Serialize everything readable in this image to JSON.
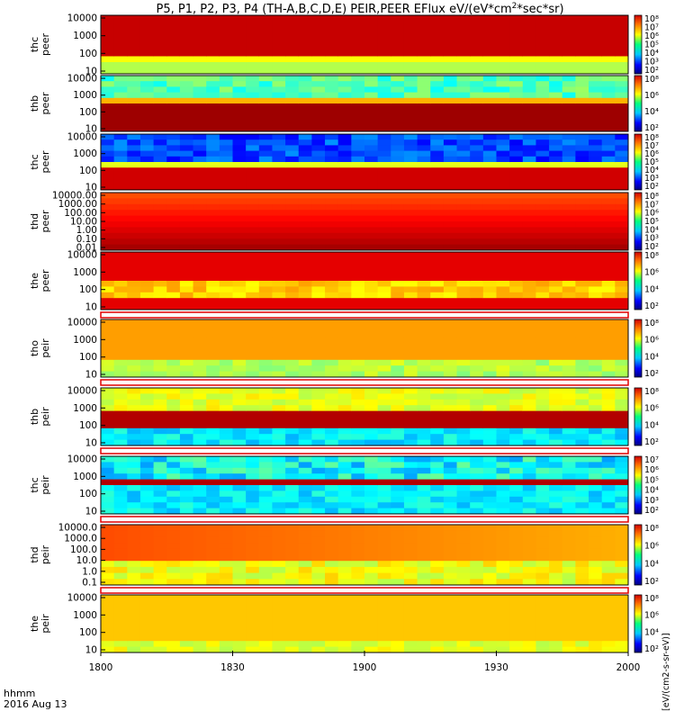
{
  "chart_data": {
    "type": "heatmap",
    "title": "P5, P1, P2, P3, P4 (TH-A,B,C,D,E) PEIR,PEER EFlux eV/(eV*cm",
    "title_sup": "2",
    "title_tail": "*sec*sr)",
    "colorbar_unit": "[eV/(cm2-s-sr-eV)]",
    "x_ticks": [
      "1800",
      "1830",
      "1900",
      "1930",
      "2000"
    ],
    "x_range_min": [
      0,
      120
    ],
    "x_axis_label": "hhmm",
    "date_label": "2016 Aug 13",
    "panels": [
      {
        "ylabel": [
          "thc",
          "peer"
        ],
        "yticks": [
          "10000",
          "1000",
          "100",
          "10"
        ],
        "cb_ticks": [
          "10⁸",
          "10⁷",
          "10⁶",
          "10⁵",
          "10⁴",
          "10³",
          "10²"
        ]
      },
      {
        "ylabel": [
          "thb",
          "peer"
        ],
        "yticks": [
          "10000",
          "1000",
          "100",
          "10"
        ],
        "cb_ticks": [
          "10⁸",
          "10⁶",
          "10⁴",
          "10²"
        ]
      },
      {
        "ylabel": [
          "thc",
          "peer"
        ],
        "yticks": [
          "10000",
          "1000",
          "100",
          "10"
        ],
        "cb_ticks": [
          "10⁸",
          "10⁷",
          "10⁶",
          "10⁵",
          "10⁴",
          "10³",
          "10²"
        ]
      },
      {
        "ylabel": [
          "thd",
          "peer"
        ],
        "yticks": [
          "10000.00",
          "1000.00",
          "100.00",
          "10.00",
          "1.00",
          "0.10",
          "0.01"
        ],
        "cb_ticks": [
          "10⁸",
          "10⁷",
          "10⁶",
          "10⁵",
          "10⁴",
          "10³",
          "10²"
        ]
      },
      {
        "ylabel": [
          "the",
          "peer"
        ],
        "yticks": [
          "10000",
          "1000",
          "100",
          "10"
        ],
        "cb_ticks": [
          "10⁸",
          "10⁶",
          "10⁴",
          "10²"
        ]
      },
      {
        "ylabel": [
          "tho",
          "peir"
        ],
        "yticks": [
          "10000",
          "1000",
          "100",
          "10"
        ],
        "cb_ticks": [
          "10⁸",
          "10⁶",
          "10⁴",
          "10²"
        ]
      },
      {
        "ylabel": [
          "thb",
          "peir"
        ],
        "yticks": [
          "10000",
          "1000",
          "100",
          "10"
        ],
        "cb_ticks": [
          "10⁸",
          "10⁶",
          "10⁴",
          "10²"
        ]
      },
      {
        "ylabel": [
          "thc",
          "peir"
        ],
        "yticks": [
          "10000",
          "1000",
          "100",
          "10"
        ],
        "cb_ticks": [
          "10⁷",
          "10⁶",
          "10⁵",
          "10⁴",
          "10³",
          "10²"
        ]
      },
      {
        "ylabel": [
          "thd",
          "peir"
        ],
        "yticks": [
          "10000.0",
          "1000.0",
          "100.0",
          "10.0",
          "1.0",
          "0.1"
        ],
        "cb_ticks": [
          "10⁸",
          "10⁶",
          "10⁴",
          "10²"
        ]
      },
      {
        "ylabel": [
          "the",
          "peir"
        ],
        "yticks": [
          "10000",
          "1000",
          "100",
          "10"
        ],
        "cb_ticks": [
          "10⁸",
          "10⁶",
          "10⁴",
          "10²"
        ]
      }
    ]
  }
}
